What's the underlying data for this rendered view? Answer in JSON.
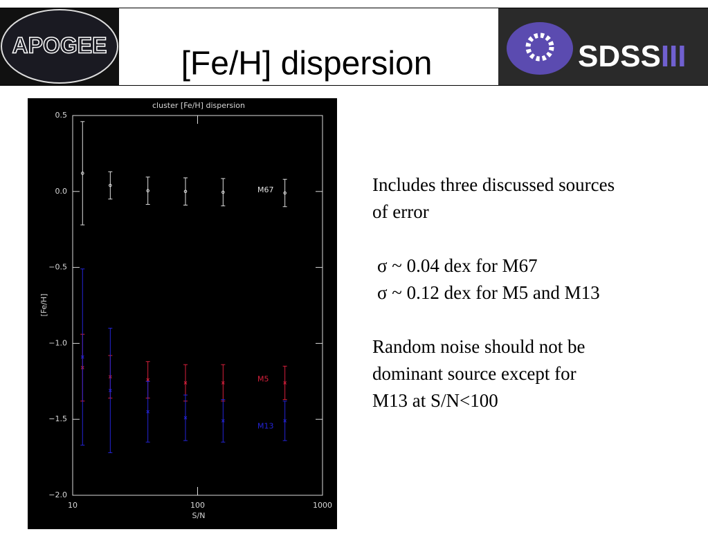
{
  "header": {
    "title": "[Fe/H] dispersion",
    "logo_left": "APOGEE",
    "logo_right": "SDSS",
    "logo_right_suffix": "III"
  },
  "body": {
    "paragraphs": [
      [
        "Includes three discussed sources",
        "of error"
      ],
      [
        "σ ~ 0.04 dex for M67",
        "σ ~ 0.12 dex for M5 and M13"
      ],
      [
        "Random noise should not be",
        "dominant  source except for",
        "M13 at S/N<100"
      ]
    ]
  },
  "chart_data": {
    "type": "errorbar",
    "title": "cluster [Fe/H] dispersion",
    "x_label": "S/N",
    "y_label": "[Fe/H]",
    "log_x": true,
    "xlim": [
      10,
      1000
    ],
    "xticks": [
      10,
      100,
      1000
    ],
    "ylim": [
      -2.0,
      0.5
    ],
    "yticks": [
      {
        "value": -2.0,
        "label": "−2.0"
      },
      {
        "value": -1.5,
        "label": "−1.5"
      },
      {
        "value": -1.0,
        "label": "−1.0"
      },
      {
        "value": -0.5,
        "label": "−0.5"
      },
      {
        "value": 0.0,
        "label": "0.0"
      },
      0.5
    ],
    "x": [
      12,
      20,
      40,
      80,
      160,
      500
    ],
    "series": [
      {
        "name": "M67",
        "color": "#e0e0e0",
        "marker": "circle",
        "values": [
          0.12,
          0.04,
          0.005,
          0.0,
          -0.005,
          -0.01
        ],
        "errors": [
          0.34,
          0.09,
          0.09,
          0.09,
          0.09,
          0.09
        ]
      },
      {
        "name": "M5",
        "color": "#d8203c",
        "marker": "cross",
        "values": [
          -1.16,
          -1.22,
          -1.24,
          -1.26,
          -1.26,
          -1.26
        ],
        "errors": [
          0.22,
          0.14,
          0.12,
          0.12,
          0.12,
          0.11
        ]
      },
      {
        "name": "M13",
        "color": "#2424d8",
        "marker": "cross",
        "values": [
          -1.09,
          -1.31,
          -1.45,
          -1.49,
          -1.51,
          -1.51
        ],
        "errors": [
          0.58,
          0.41,
          0.2,
          0.15,
          0.14,
          0.13
        ]
      }
    ]
  }
}
